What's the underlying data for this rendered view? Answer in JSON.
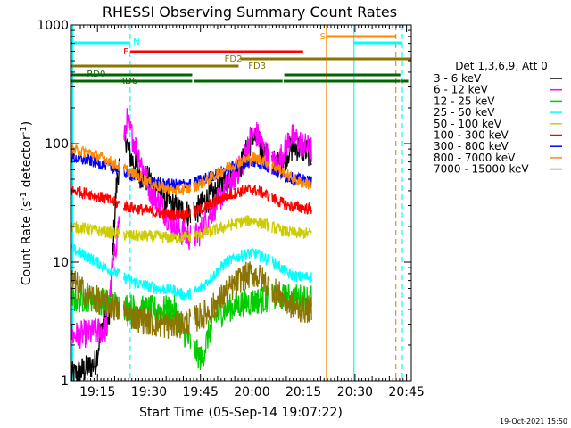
{
  "chart_data": {
    "type": "line",
    "title": "RHESSI Observing Summary Count Rates",
    "xlabel": "Start Time (05-Sep-14 19:07:22)",
    "ylabel_main": "Count Rate (s",
    "ylabel_sup1": "-1",
    "ylabel_mid": " detector",
    "ylabel_sup2": "-1",
    "ylabel_end": ")",
    "footer_date": "19-Oct-2021 15:50",
    "y_scale": "log",
    "ylim": [
      1,
      1000
    ],
    "xlim_minutes": [
      0,
      99
    ],
    "x_ticks": [
      {
        "label": "19:15",
        "t": 7.6
      },
      {
        "label": "19:30",
        "t": 22.6
      },
      {
        "label": "19:45",
        "t": 37.6
      },
      {
        "label": "20:00",
        "t": 52.6
      },
      {
        "label": "20:15",
        "t": 67.6
      },
      {
        "label": "20:30",
        "t": 82.6
      },
      {
        "label": "20:45",
        "t": 97.6
      }
    ],
    "y_ticks": [
      {
        "label": "1",
        "v": 1
      },
      {
        "label": "10",
        "v": 10
      },
      {
        "label": "100",
        "v": 100
      },
      {
        "label": "1000",
        "v": 1000
      }
    ],
    "legend_header": "Det 1,3,6,9, Att 0",
    "legend_placement": "right",
    "series": [
      {
        "name": "3 - 6 keV",
        "color": "#000000",
        "points": [
          [
            0,
            1.1
          ],
          [
            3,
            1.2
          ],
          [
            7,
            1.4
          ],
          [
            9,
            3
          ],
          [
            11,
            3.2
          ],
          [
            13,
            40
          ],
          [
            14,
            70
          ],
          [
            15,
            90
          ],
          [
            16,
            110
          ],
          [
            17,
            80
          ],
          [
            18,
            70
          ],
          [
            20,
            55
          ],
          [
            23,
            48
          ],
          [
            26,
            40
          ],
          [
            28,
            32
          ],
          [
            31,
            28
          ],
          [
            34,
            26
          ],
          [
            37,
            28
          ],
          [
            39,
            33
          ],
          [
            42,
            38
          ],
          [
            45,
            50
          ],
          [
            48,
            60
          ],
          [
            50,
            72
          ],
          [
            52,
            100
          ],
          [
            53,
            120
          ],
          [
            54,
            105
          ],
          [
            56,
            85
          ],
          [
            58,
            72
          ],
          [
            60,
            66
          ],
          [
            62,
            72
          ],
          [
            63,
            85
          ],
          [
            65,
            95
          ],
          [
            67,
            90
          ],
          [
            69,
            85
          ],
          [
            70,
            80
          ]
        ]
      },
      {
        "name": "6 - 12 keV",
        "color": "#ff00ff",
        "points": [
          [
            0,
            2.4
          ],
          [
            5,
            2.5
          ],
          [
            10,
            2.7
          ],
          [
            14,
            25
          ],
          [
            15,
            80
          ],
          [
            16,
            160
          ],
          [
            17,
            130
          ],
          [
            18,
            110
          ],
          [
            20,
            75
          ],
          [
            23,
            40
          ],
          [
            26,
            30
          ],
          [
            29,
            22
          ],
          [
            32,
            18
          ],
          [
            35,
            16
          ],
          [
            37,
            17
          ],
          [
            39,
            22
          ],
          [
            42,
            30
          ],
          [
            45,
            42
          ],
          [
            48,
            55
          ],
          [
            50,
            70
          ],
          [
            52,
            110
          ],
          [
            54,
            120
          ],
          [
            56,
            90
          ],
          [
            58,
            70
          ],
          [
            60,
            65
          ],
          [
            62,
            90
          ],
          [
            64,
            115
          ],
          [
            66,
            105
          ],
          [
            68,
            95
          ],
          [
            70,
            88
          ]
        ]
      },
      {
        "name": "12 - 25 keV",
        "color": "#00cc00",
        "points": [
          [
            0,
            4.8
          ],
          [
            5,
            5
          ],
          [
            10,
            4.6
          ],
          [
            15,
            4.3
          ],
          [
            20,
            4
          ],
          [
            25,
            4
          ],
          [
            30,
            4
          ],
          [
            33,
            2.5
          ],
          [
            36,
            1.8
          ],
          [
            38,
            1.5
          ],
          [
            40,
            2.5
          ],
          [
            42,
            3.5
          ],
          [
            45,
            4
          ],
          [
            50,
            4.5
          ],
          [
            55,
            4.8
          ],
          [
            60,
            5
          ],
          [
            65,
            5
          ],
          [
            70,
            5
          ]
        ]
      },
      {
        "name": "25 - 50 keV",
        "color": "#00ffff",
        "points": [
          [
            0,
            13
          ],
          [
            5,
            11
          ],
          [
            10,
            9
          ],
          [
            15,
            7.5
          ],
          [
            20,
            6.5
          ],
          [
            25,
            6
          ],
          [
            30,
            5.8
          ],
          [
            33,
            5.2
          ],
          [
            37,
            5.8
          ],
          [
            41,
            7.5
          ],
          [
            45,
            10
          ],
          [
            50,
            11.5
          ],
          [
            53,
            12
          ],
          [
            56,
            11
          ],
          [
            60,
            9.5
          ],
          [
            63,
            8
          ],
          [
            66,
            7.5
          ],
          [
            70,
            7.5
          ]
        ]
      },
      {
        "name": "50 - 100 keV",
        "color": "#cccc00",
        "points": [
          [
            0,
            20
          ],
          [
            5,
            19
          ],
          [
            10,
            18
          ],
          [
            15,
            17
          ],
          [
            20,
            16.5
          ],
          [
            25,
            16.5
          ],
          [
            30,
            16
          ],
          [
            35,
            16.5
          ],
          [
            40,
            18
          ],
          [
            45,
            20
          ],
          [
            50,
            22
          ],
          [
            53,
            22.5
          ],
          [
            56,
            21
          ],
          [
            60,
            19
          ],
          [
            63,
            18
          ],
          [
            66,
            17.5
          ],
          [
            70,
            17.5
          ]
        ]
      },
      {
        "name": "100 - 300 keV",
        "color": "#ff0000",
        "points": [
          [
            0,
            40
          ],
          [
            5,
            38
          ],
          [
            10,
            34
          ],
          [
            15,
            30
          ],
          [
            20,
            28
          ],
          [
            25,
            26
          ],
          [
            30,
            25
          ],
          [
            35,
            26
          ],
          [
            40,
            30
          ],
          [
            45,
            36
          ],
          [
            50,
            40
          ],
          [
            53,
            41
          ],
          [
            56,
            38
          ],
          [
            60,
            33
          ],
          [
            63,
            30
          ],
          [
            66,
            29
          ],
          [
            70,
            28
          ]
        ]
      },
      {
        "name": "300 - 800 keV",
        "color": "#0000ff",
        "points": [
          [
            0,
            76
          ],
          [
            5,
            72
          ],
          [
            10,
            66
          ],
          [
            15,
            58
          ],
          [
            20,
            50
          ],
          [
            25,
            46
          ],
          [
            30,
            45
          ],
          [
            35,
            46
          ],
          [
            40,
            52
          ],
          [
            45,
            60
          ],
          [
            50,
            68
          ],
          [
            53,
            70
          ],
          [
            56,
            66
          ],
          [
            60,
            58
          ],
          [
            63,
            52
          ],
          [
            66,
            50
          ],
          [
            70,
            48
          ]
        ]
      },
      {
        "name": "800 - 7000 keV",
        "color": "#ff8800",
        "points": [
          [
            0,
            88
          ],
          [
            5,
            84
          ],
          [
            10,
            74
          ],
          [
            15,
            62
          ],
          [
            20,
            52
          ],
          [
            25,
            44
          ],
          [
            30,
            40
          ],
          [
            35,
            42
          ],
          [
            40,
            50
          ],
          [
            45,
            62
          ],
          [
            50,
            72
          ],
          [
            53,
            76
          ],
          [
            56,
            72
          ],
          [
            60,
            62
          ],
          [
            63,
            54
          ],
          [
            66,
            48
          ],
          [
            70,
            45
          ]
        ]
      },
      {
        "name": "7000 - 15000 keV",
        "color": "#8b7500",
        "points": [
          [
            0,
            7
          ],
          [
            5,
            5.2
          ],
          [
            10,
            4.5
          ],
          [
            15,
            3.8
          ],
          [
            20,
            3.3
          ],
          [
            25,
            3
          ],
          [
            30,
            2.9
          ],
          [
            35,
            3.2
          ],
          [
            40,
            3.8
          ],
          [
            45,
            5.5
          ],
          [
            50,
            7.5
          ],
          [
            53,
            8
          ],
          [
            56,
            7
          ],
          [
            60,
            5.5
          ],
          [
            63,
            4.5
          ],
          [
            66,
            4
          ],
          [
            70,
            4
          ]
        ]
      }
    ],
    "gaps_minutes": [
      [
        14,
        15.2
      ],
      [
        34.8,
        35.6
      ],
      [
        57.6,
        58.4
      ],
      [
        70.5,
        99
      ]
    ],
    "vertical_markers": [
      {
        "t": 0.4,
        "color": "#00ffff",
        "style": "solid"
      },
      {
        "t": 17.1,
        "color": "#00ffff",
        "style": "dashed"
      },
      {
        "t": 74.3,
        "color": "#ff8800",
        "style": "solid"
      },
      {
        "t": 82.3,
        "color": "#00ffff",
        "style": "solid"
      },
      {
        "t": 94.5,
        "color": "#ff8800",
        "style": "dashed"
      },
      {
        "t": 96.4,
        "color": "#00ffff",
        "style": "dashed"
      }
    ],
    "flag_bars": [
      {
        "label": "N",
        "color": "#00ffff",
        "segments": [
          [
            0,
            17.1
          ],
          [
            82.3,
            96.4
          ]
        ],
        "label_t": 18.0
      },
      {
        "label": "S",
        "color": "#ff8800",
        "segments": [
          [
            74.3,
            94.5
          ]
        ],
        "label_t": 72.4
      },
      {
        "label": "F",
        "color": "#ff0000",
        "segments": [
          [
            17.1,
            67.5
          ]
        ],
        "label_t": 15.1
      },
      {
        "label": "FD2",
        "color": "#8b7500",
        "segments": [
          [
            49.2,
            99
          ]
        ],
        "label_t": 44.6
      },
      {
        "label": "FD3",
        "color": "#8b7500",
        "segments": [
          [
            0,
            48.7
          ]
        ],
        "label_t": 51.5
      },
      {
        "label": "RD0",
        "color": "#006600",
        "segments": [
          [
            0,
            35.2
          ],
          [
            62.0,
            95.8
          ]
        ],
        "label_t": 4.5
      },
      {
        "label": "RD6",
        "color": "#006600",
        "segments": [
          [
            0,
            35.2
          ],
          [
            35.8,
            61.5
          ],
          [
            61.8,
            95.8
          ],
          [
            96.1,
            98.1
          ]
        ],
        "label_t": 13.8
      }
    ]
  }
}
